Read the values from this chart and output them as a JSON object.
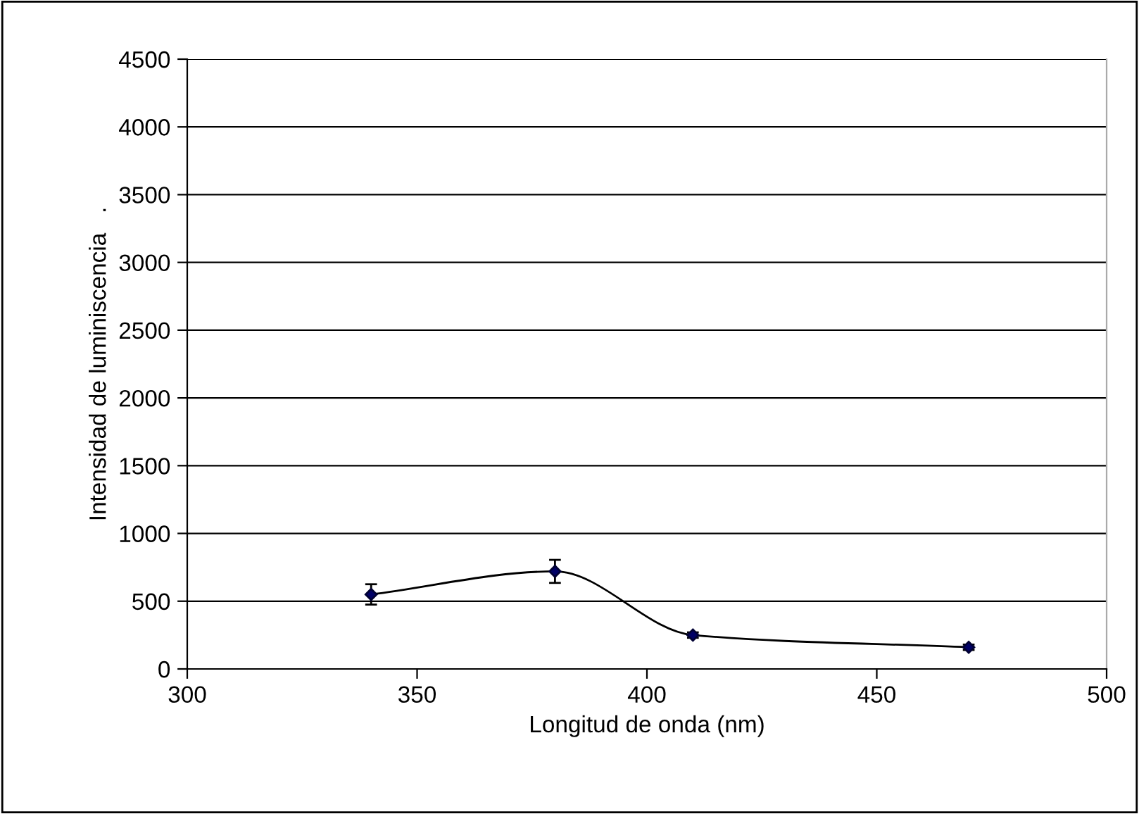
{
  "chart_data": {
    "type": "line",
    "xlabel": "Longitud de onda (nm)",
    "ylabel": "Intensidad de luminiscencia   .",
    "x": [
      340,
      380,
      410,
      470
    ],
    "series": [
      {
        "color": "#000000",
        "values": [
          550,
          720,
          250,
          160
        ],
        "errors": [
          75,
          85,
          20,
          20
        ]
      }
    ],
    "marker": "diamond",
    "line_style": "solid",
    "xlim": [
      300,
      500
    ],
    "xticks": [
      300,
      350,
      400,
      450,
      500
    ],
    "ylim": [
      0,
      4500
    ],
    "yticks": [
      0,
      500,
      1000,
      1500,
      2000,
      2500,
      3000,
      3500,
      4000,
      4500
    ],
    "grid": "y",
    "legend": false
  }
}
